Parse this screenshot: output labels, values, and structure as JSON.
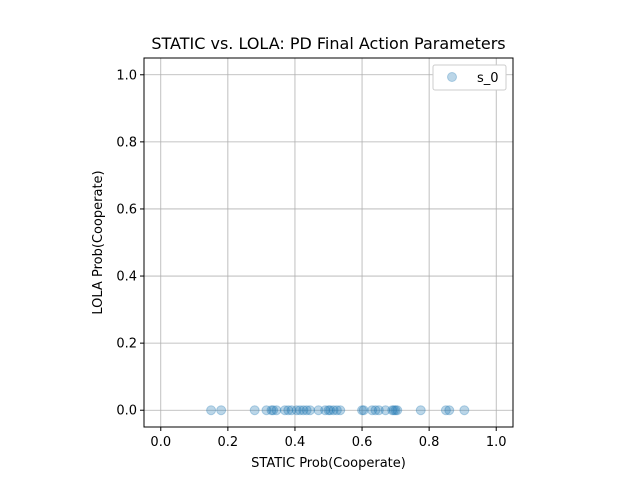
{
  "chart_data": {
    "type": "scatter",
    "title": "STATIC vs. LOLA: PD Final Action Parameters",
    "xlabel": "STATIC Prob(Cooperate)",
    "ylabel": "LOLA Prob(Cooperate)",
    "xlim": [
      -0.05,
      1.05
    ],
    "ylim": [
      -0.05,
      1.05
    ],
    "xticks": [
      "0.0",
      "0.2",
      "0.4",
      "0.6",
      "0.8",
      "1.0"
    ],
    "yticks": [
      "0.0",
      "0.2",
      "0.4",
      "0.6",
      "0.8",
      "1.0"
    ],
    "grid": true,
    "legend_position": "top-right",
    "marker_color": "#1f77b4",
    "marker_alpha": 0.3,
    "series": [
      {
        "name": "s_0",
        "x": [
          0.15,
          0.18,
          0.28,
          0.315,
          0.33,
          0.335,
          0.345,
          0.37,
          0.38,
          0.39,
          0.405,
          0.415,
          0.425,
          0.435,
          0.445,
          0.47,
          0.49,
          0.5,
          0.505,
          0.515,
          0.525,
          0.535,
          0.6,
          0.605,
          0.63,
          0.64,
          0.65,
          0.67,
          0.69,
          0.695,
          0.7,
          0.705,
          0.775,
          0.85,
          0.86,
          0.905
        ],
        "y": [
          0,
          0,
          0,
          0,
          0,
          0,
          0,
          0,
          0,
          0,
          0,
          0,
          0,
          0,
          0,
          0,
          0,
          0,
          0,
          0,
          0,
          0,
          0,
          0,
          0,
          0,
          0,
          0,
          0,
          0,
          0,
          0,
          0,
          0,
          0,
          0
        ]
      }
    ]
  }
}
